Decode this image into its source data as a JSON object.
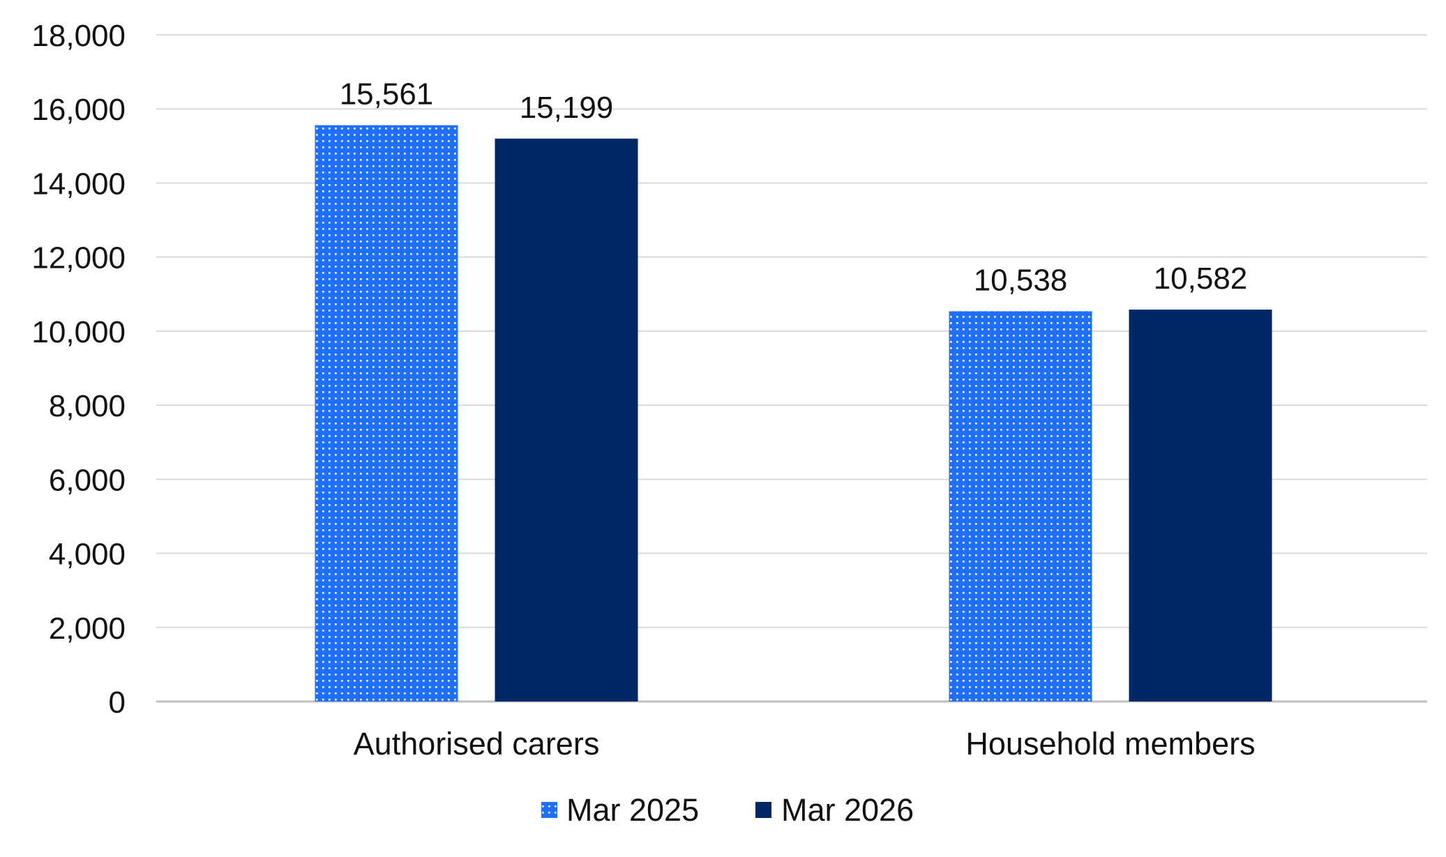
{
  "chart_data": {
    "type": "bar",
    "title": "",
    "xlabel": "",
    "ylabel": "",
    "categories": [
      "Authorised carers",
      "Household members"
    ],
    "series": [
      {
        "name": "Mar 2025",
        "values": [
          15561,
          10538
        ],
        "color": "#1f6fff",
        "pattern": "dotted"
      },
      {
        "name": "Mar 2026",
        "values": [
          15199,
          10582
        ],
        "color": "#002766",
        "pattern": "solid"
      }
    ],
    "data_labels": [
      [
        "15,561",
        "10,538"
      ],
      [
        "15,199",
        "10,582"
      ]
    ],
    "ylim": [
      0,
      18000
    ],
    "yticks": [
      0,
      2000,
      4000,
      6000,
      8000,
      10000,
      12000,
      14000,
      16000,
      18000
    ],
    "ytick_labels": [
      "0",
      "2,000",
      "4,000",
      "6,000",
      "8,000",
      "10,000",
      "12,000",
      "14,000",
      "16,000",
      "18,000"
    ],
    "grid": true,
    "legend_position": "bottom"
  }
}
